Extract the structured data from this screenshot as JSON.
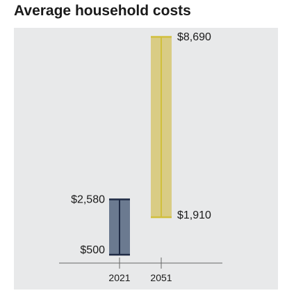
{
  "chart_data": {
    "type": "floating-bar",
    "title": "Average household costs",
    "categories": [
      "2021",
      "2051"
    ],
    "ranges": [
      {
        "low": 500,
        "high": 2580,
        "low_label": "$500",
        "high_label": "$2,580",
        "color": "#6b7a90",
        "edge": "#1e2a44"
      },
      {
        "low": 1910,
        "high": 8690,
        "low_label": "$1,910",
        "high_label": "$8,690",
        "color": "#d9cc84",
        "edge": "#d1bf3c"
      }
    ],
    "ylim": [
      0,
      8690
    ],
    "xlabel": "",
    "ylabel": "",
    "grid": false
  }
}
